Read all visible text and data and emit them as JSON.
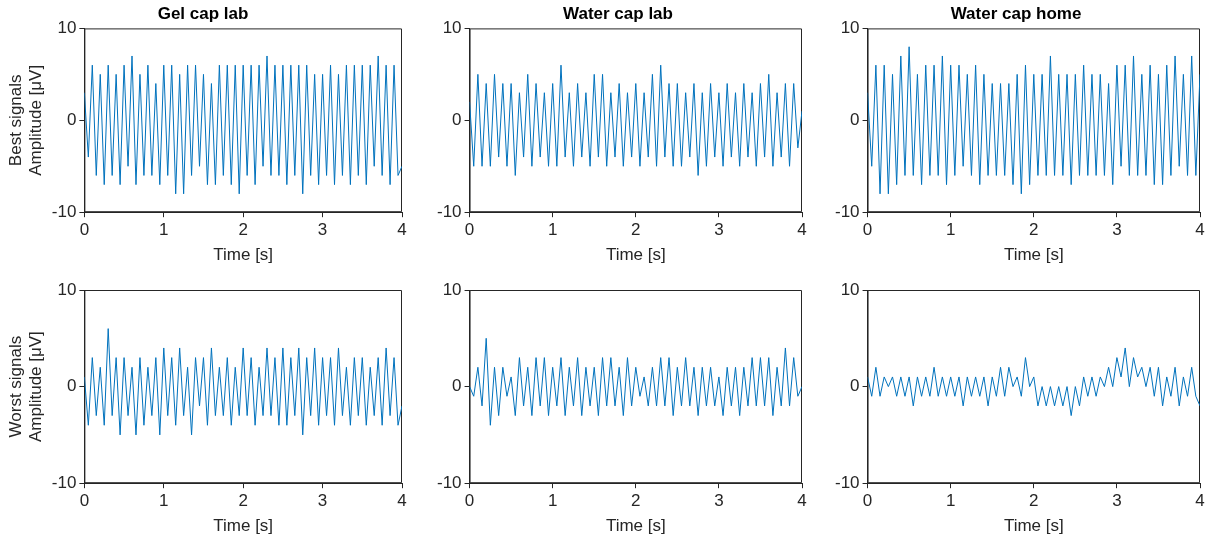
{
  "chart_data": [
    {
      "type": "line",
      "title": "Gel cap lab",
      "xlabel": "Time [s]",
      "ylabel": "Best signals\nAmplitude [μV]",
      "color": "#0072bd",
      "xlim": [
        0,
        4
      ],
      "xticks": [
        0,
        1,
        2,
        3,
        4
      ],
      "ylim": [
        -10,
        10
      ],
      "yticks": [
        -10,
        0,
        10
      ],
      "x": [
        0,
        0.05,
        0.1,
        0.15,
        0.2,
        0.25,
        0.3,
        0.35,
        0.4,
        0.45,
        0.5,
        0.55,
        0.6,
        0.65,
        0.7,
        0.75,
        0.8,
        0.85,
        0.9,
        0.95,
        1,
        1.05,
        1.1,
        1.15,
        1.2,
        1.25,
        1.3,
        1.35,
        1.4,
        1.45,
        1.5,
        1.55,
        1.6,
        1.65,
        1.7,
        1.75,
        1.8,
        1.85,
        1.9,
        1.95,
        2,
        2.05,
        2.1,
        2.15,
        2.2,
        2.25,
        2.3,
        2.35,
        2.4,
        2.45,
        2.5,
        2.55,
        2.6,
        2.65,
        2.7,
        2.75,
        2.8,
        2.85,
        2.9,
        2.95,
        3,
        3.05,
        3.1,
        3.15,
        3.2,
        3.25,
        3.3,
        3.35,
        3.4,
        3.45,
        3.5,
        3.55,
        3.6,
        3.65,
        3.7,
        3.75,
        3.8,
        3.85,
        3.9,
        3.95,
        4
      ],
      "values": [
        3,
        -4,
        6,
        -6,
        5,
        -7,
        6,
        -6,
        5,
        -7,
        6,
        -5,
        7,
        -7,
        5,
        -6,
        6,
        -6,
        4,
        -7,
        6,
        -6,
        6,
        -8,
        5,
        -8,
        6,
        -6,
        6,
        -5,
        5,
        -7,
        4,
        -7,
        6,
        -6,
        6,
        -7,
        6,
        -8,
        6,
        -6,
        6,
        -7,
        6,
        -5,
        7,
        -6,
        6,
        -6,
        6,
        -7,
        6,
        -6,
        6,
        -8,
        6,
        -6,
        5,
        -7,
        5,
        -6,
        6,
        -7,
        5,
        -6,
        6,
        -7,
        6,
        -6,
        6,
        -7,
        6,
        -5,
        7,
        -6,
        6,
        -7,
        6,
        -6,
        -5
      ]
    },
    {
      "type": "line",
      "title": "Water cap lab",
      "xlabel": "Time [s]",
      "color": "#0072bd",
      "xlim": [
        0,
        4
      ],
      "xticks": [
        0,
        1,
        2,
        3,
        4
      ],
      "ylim": [
        -10,
        10
      ],
      "yticks": [
        -10,
        0,
        10
      ],
      "x": [
        0,
        0.05,
        0.1,
        0.15,
        0.2,
        0.25,
        0.3,
        0.35,
        0.4,
        0.45,
        0.5,
        0.55,
        0.6,
        0.65,
        0.7,
        0.75,
        0.8,
        0.85,
        0.9,
        0.95,
        1,
        1.05,
        1.1,
        1.15,
        1.2,
        1.25,
        1.3,
        1.35,
        1.4,
        1.45,
        1.5,
        1.55,
        1.6,
        1.65,
        1.7,
        1.75,
        1.8,
        1.85,
        1.9,
        1.95,
        2,
        2.05,
        2.1,
        2.15,
        2.2,
        2.25,
        2.3,
        2.35,
        2.4,
        2.45,
        2.5,
        2.55,
        2.6,
        2.65,
        2.7,
        2.75,
        2.8,
        2.85,
        2.9,
        2.95,
        3,
        3.05,
        3.1,
        3.15,
        3.2,
        3.25,
        3.3,
        3.35,
        3.4,
        3.45,
        3.5,
        3.55,
        3.6,
        3.65,
        3.7,
        3.75,
        3.8,
        3.85,
        3.9,
        3.95,
        4
      ],
      "values": [
        2,
        -5,
        5,
        -5,
        4,
        -5,
        5,
        -4,
        4,
        -5,
        4,
        -6,
        3,
        -4,
        5,
        -5,
        4,
        -4,
        3,
        -5,
        4,
        -5,
        6,
        -4,
        3,
        -5,
        4,
        -4,
        3,
        -5,
        5,
        -4,
        5,
        -5,
        3,
        -4,
        4,
        -5,
        3,
        -4,
        4,
        -5,
        3,
        -4,
        5,
        -5,
        6,
        -4,
        4,
        -5,
        4,
        -5,
        3,
        -4,
        4,
        -6,
        3,
        -5,
        4,
        -4,
        3,
        -5,
        4,
        -4,
        3,
        -5,
        4,
        -4,
        3,
        -5,
        4,
        -4,
        5,
        -5,
        3,
        -4,
        4,
        -5,
        4,
        -3,
        1
      ]
    },
    {
      "type": "line",
      "title": "Water cap home",
      "xlabel": "Time [s]",
      "color": "#0072bd",
      "xlim": [
        0,
        4
      ],
      "xticks": [
        0,
        1,
        2,
        3,
        4
      ],
      "ylim": [
        -10,
        10
      ],
      "yticks": [
        -10,
        0,
        10
      ],
      "x": [
        0,
        0.05,
        0.1,
        0.15,
        0.2,
        0.25,
        0.3,
        0.35,
        0.4,
        0.45,
        0.5,
        0.55,
        0.6,
        0.65,
        0.7,
        0.75,
        0.8,
        0.85,
        0.9,
        0.95,
        1,
        1.05,
        1.1,
        1.15,
        1.2,
        1.25,
        1.3,
        1.35,
        1.4,
        1.45,
        1.5,
        1.55,
        1.6,
        1.65,
        1.7,
        1.75,
        1.8,
        1.85,
        1.9,
        1.95,
        2,
        2.05,
        2.1,
        2.15,
        2.2,
        2.25,
        2.3,
        2.35,
        2.4,
        2.45,
        2.5,
        2.55,
        2.6,
        2.65,
        2.7,
        2.75,
        2.8,
        2.85,
        2.9,
        2.95,
        3,
        3.05,
        3.1,
        3.15,
        3.2,
        3.25,
        3.3,
        3.35,
        3.4,
        3.45,
        3.5,
        3.55,
        3.6,
        3.65,
        3.7,
        3.75,
        3.8,
        3.85,
        3.9,
        3.95,
        4
      ],
      "values": [
        3,
        -5,
        6,
        -8,
        6,
        -8,
        5,
        -7,
        7,
        -6,
        8,
        -6,
        5,
        -7,
        6,
        -6,
        6,
        -6,
        7,
        -7,
        6,
        -6,
        6,
        -5,
        5,
        -6,
        6,
        -7,
        5,
        -6,
        4,
        -6,
        4,
        -6,
        4,
        -7,
        5,
        -8,
        6,
        -7,
        5,
        -6,
        5,
        -6,
        7,
        -6,
        5,
        -6,
        5,
        -7,
        5,
        -6,
        6,
        -6,
        5,
        -6,
        5,
        -6,
        4,
        -7,
        6,
        -5,
        6,
        -6,
        7,
        -6,
        5,
        -6,
        6,
        -7,
        5,
        -7,
        6,
        -6,
        7,
        -5,
        5,
        -6,
        7,
        -6,
        5
      ]
    },
    {
      "type": "line",
      "xlabel": "Time [s]",
      "ylabel": "Worst signals\nAmplitude [μV]",
      "color": "#0072bd",
      "xlim": [
        0,
        4
      ],
      "xticks": [
        0,
        1,
        2,
        3,
        4
      ],
      "ylim": [
        -10,
        10
      ],
      "yticks": [
        -10,
        0,
        10
      ],
      "x": [
        0,
        0.05,
        0.1,
        0.15,
        0.2,
        0.25,
        0.3,
        0.35,
        0.4,
        0.45,
        0.5,
        0.55,
        0.6,
        0.65,
        0.7,
        0.75,
        0.8,
        0.85,
        0.9,
        0.95,
        1,
        1.05,
        1.1,
        1.15,
        1.2,
        1.25,
        1.3,
        1.35,
        1.4,
        1.45,
        1.5,
        1.55,
        1.6,
        1.65,
        1.7,
        1.75,
        1.8,
        1.85,
        1.9,
        1.95,
        2,
        2.05,
        2.1,
        2.15,
        2.2,
        2.25,
        2.3,
        2.35,
        2.4,
        2.45,
        2.5,
        2.55,
        2.6,
        2.65,
        2.7,
        2.75,
        2.8,
        2.85,
        2.9,
        2.95,
        3,
        3.05,
        3.1,
        3.15,
        3.2,
        3.25,
        3.3,
        3.35,
        3.4,
        3.45,
        3.5,
        3.55,
        3.6,
        3.65,
        3.7,
        3.75,
        3.8,
        3.85,
        3.9,
        3.95,
        4
      ],
      "values": [
        1,
        -4,
        3,
        -3,
        2,
        -4,
        6,
        -3,
        3,
        -5,
        3,
        -3,
        2,
        -5,
        3,
        -4,
        2,
        -3,
        3,
        -5,
        4,
        -3,
        3,
        -4,
        4,
        -3,
        2,
        -5,
        3,
        -2,
        3,
        -4,
        4,
        -3,
        2,
        -3,
        3,
        -4,
        2,
        -3,
        4,
        -3,
        3,
        -4,
        2,
        -3,
        4,
        -3,
        3,
        -4,
        4,
        -4,
        3,
        -3,
        4,
        -5,
        3,
        -3,
        4,
        -4,
        3,
        -3,
        3,
        -4,
        4,
        -3,
        2,
        -4,
        3,
        -3,
        3,
        -4,
        2,
        -3,
        3,
        -4,
        4,
        -3,
        3,
        -4,
        -2
      ]
    },
    {
      "type": "line",
      "xlabel": "Time [s]",
      "color": "#0072bd",
      "xlim": [
        0,
        4
      ],
      "xticks": [
        0,
        1,
        2,
        3,
        4
      ],
      "ylim": [
        -10,
        10
      ],
      "yticks": [
        -10,
        0,
        10
      ],
      "x": [
        0,
        0.05,
        0.1,
        0.15,
        0.2,
        0.25,
        0.3,
        0.35,
        0.4,
        0.45,
        0.5,
        0.55,
        0.6,
        0.65,
        0.7,
        0.75,
        0.8,
        0.85,
        0.9,
        0.95,
        1,
        1.05,
        1.1,
        1.15,
        1.2,
        1.25,
        1.3,
        1.35,
        1.4,
        1.45,
        1.5,
        1.55,
        1.6,
        1.65,
        1.7,
        1.75,
        1.8,
        1.85,
        1.9,
        1.95,
        2,
        2.05,
        2.1,
        2.15,
        2.2,
        2.25,
        2.3,
        2.35,
        2.4,
        2.45,
        2.5,
        2.55,
        2.6,
        2.65,
        2.7,
        2.75,
        2.8,
        2.85,
        2.9,
        2.95,
        3,
        3.05,
        3.1,
        3.15,
        3.2,
        3.25,
        3.3,
        3.35,
        3.4,
        3.45,
        3.5,
        3.55,
        3.6,
        3.65,
        3.7,
        3.75,
        3.8,
        3.85,
        3.9,
        3.95,
        4
      ],
      "values": [
        0,
        -1,
        2,
        -2,
        5,
        -4,
        2,
        -3,
        2,
        -1,
        1,
        -3,
        3,
        -2,
        2,
        -3,
        3,
        -2,
        3,
        -3,
        2,
        -2,
        3,
        -3,
        2,
        -2,
        3,
        -3,
        2,
        -2,
        2,
        -3,
        3,
        -2,
        3,
        -2,
        2,
        -3,
        3,
        -2,
        2,
        -1,
        1,
        -2,
        2,
        -2,
        3,
        -2,
        3,
        -3,
        2,
        -2,
        3,
        -2,
        2,
        -3,
        2,
        -2,
        2,
        -2,
        1,
        -3,
        2,
        -2,
        2,
        -3,
        2,
        -2,
        3,
        -2,
        3,
        -2,
        3,
        -3,
        2,
        -2,
        4,
        -2,
        3,
        -1,
        0
      ]
    },
    {
      "type": "line",
      "xlabel": "Time [s]",
      "color": "#0072bd",
      "xlim": [
        0,
        4
      ],
      "xticks": [
        0,
        1,
        2,
        3,
        4
      ],
      "ylim": [
        -10,
        10
      ],
      "yticks": [
        -10,
        0,
        10
      ],
      "x": [
        0,
        0.05,
        0.1,
        0.15,
        0.2,
        0.25,
        0.3,
        0.35,
        0.4,
        0.45,
        0.5,
        0.55,
        0.6,
        0.65,
        0.7,
        0.75,
        0.8,
        0.85,
        0.9,
        0.95,
        1,
        1.05,
        1.1,
        1.15,
        1.2,
        1.25,
        1.3,
        1.35,
        1.4,
        1.45,
        1.5,
        1.55,
        1.6,
        1.65,
        1.7,
        1.75,
        1.8,
        1.85,
        1.9,
        1.95,
        2,
        2.05,
        2.1,
        2.15,
        2.2,
        2.25,
        2.3,
        2.35,
        2.4,
        2.45,
        2.5,
        2.55,
        2.6,
        2.65,
        2.7,
        2.75,
        2.8,
        2.85,
        2.9,
        2.95,
        3,
        3.05,
        3.1,
        3.15,
        3.2,
        3.25,
        3.3,
        3.35,
        3.4,
        3.45,
        3.5,
        3.55,
        3.6,
        3.65,
        3.7,
        3.75,
        3.8,
        3.85,
        3.9,
        3.95,
        4
      ],
      "values": [
        1,
        -1,
        2,
        -1,
        1,
        0,
        1,
        -1,
        1,
        -1,
        1,
        -2,
        1,
        -1,
        1,
        -1,
        2,
        -1,
        1,
        -1,
        1,
        -1,
        1,
        -2,
        1,
        -1,
        1,
        -1,
        1,
        -2,
        1,
        -1,
        2,
        -1,
        2,
        0,
        1,
        -1,
        3,
        0,
        1,
        -2,
        0,
        -2,
        0,
        -2,
        0,
        -2,
        0,
        -3,
        0,
        -2,
        1,
        -1,
        1,
        -1,
        1,
        0,
        2,
        0,
        3,
        1,
        4,
        0,
        3,
        1,
        2,
        0,
        2,
        -1,
        2,
        -2,
        1,
        -1,
        2,
        -2,
        1,
        -1,
        2,
        -1,
        -2
      ]
    }
  ]
}
